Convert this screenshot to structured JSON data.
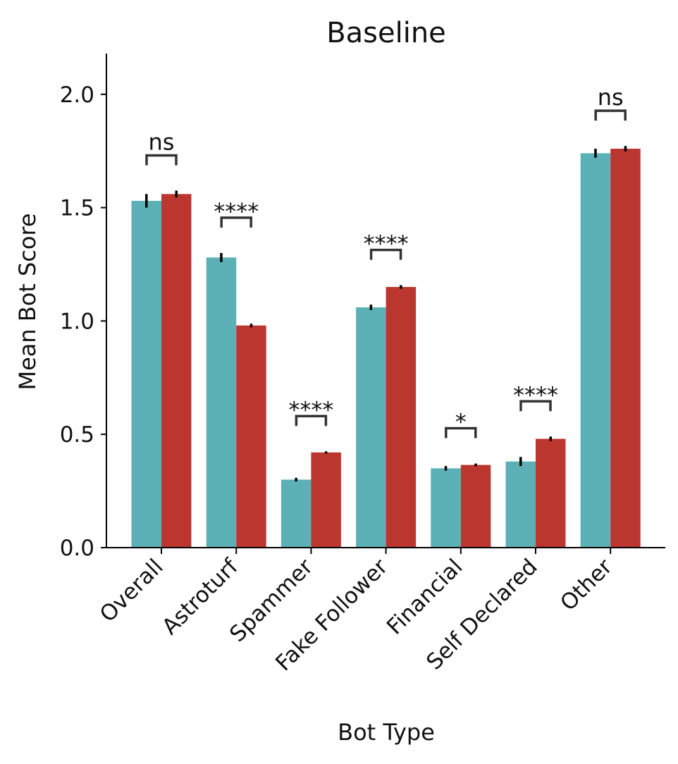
{
  "chart_data": {
    "type": "bar",
    "title": "Baseline",
    "xlabel": "Bot Type",
    "ylabel": "Mean Bot Score",
    "ylim": [
      0,
      2.18
    ],
    "yticks": [
      "0.0",
      "0.5",
      "1.0",
      "1.5",
      "2.0"
    ],
    "categories": [
      "Overall",
      "Astroturf",
      "Spammer",
      "Fake Follower",
      "Financial",
      "Self Declared",
      "Other"
    ],
    "series": [
      {
        "color": "#5bb1b5",
        "values": [
          1.53,
          1.28,
          0.3,
          1.06,
          0.35,
          0.38,
          1.74
        ],
        "errors": [
          0.03,
          0.02,
          0.008,
          0.012,
          0.01,
          0.02,
          0.02
        ]
      },
      {
        "color": "#bc3630",
        "values": [
          1.56,
          0.98,
          0.42,
          1.15,
          0.365,
          0.48,
          1.76
        ],
        "errors": [
          0.015,
          0.008,
          0.005,
          0.008,
          0.006,
          0.01,
          0.012
        ]
      }
    ],
    "significance": [
      "ns",
      "****",
      "****",
      "****",
      "*",
      "****",
      "ns"
    ],
    "grid": false,
    "legend": "none",
    "error_color": "#000000",
    "bracket_color": "#333333"
  }
}
